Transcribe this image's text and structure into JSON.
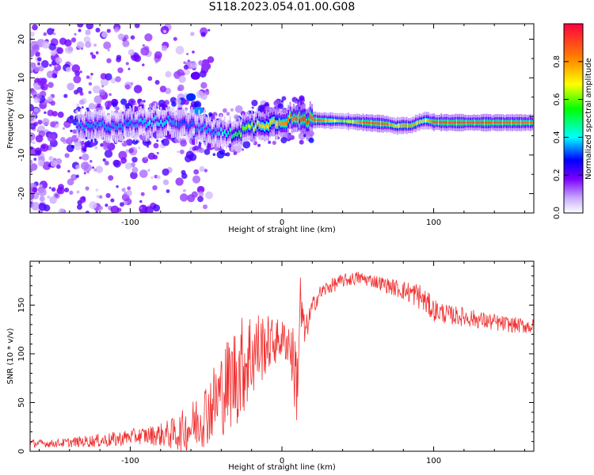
{
  "figure_title": "S118.2023.054.01.00.G08",
  "chart_data": [
    {
      "type": "heatmap",
      "title": "",
      "xlabel": "Height of straight line (km)",
      "ylabel": "Frequency (Hz)",
      "xlim": [
        -166,
        166
      ],
      "ylim": [
        -25,
        24
      ],
      "xticks": [
        -100,
        0,
        100
      ],
      "yticks": [
        -20,
        -10,
        0,
        10,
        20
      ],
      "colorbar": {
        "label": "Normalized spectral amplitude",
        "range": [
          0.0,
          1.0
        ],
        "ticks": [
          0.0,
          0.2,
          0.4,
          0.6,
          0.8
        ],
        "tick_labels": [
          "0.0",
          "0.2",
          "0.4",
          "0.6",
          "0.8"
        ],
        "colormap": [
          "#ffffff",
          "#c8a8ff",
          "#7a00ff",
          "#0000ff",
          "#00ffff",
          "#00ff00",
          "#ffff00",
          "#ff8000",
          "#ff0040"
        ]
      },
      "ridge": {
        "x": [
          -135,
          -120,
          -100,
          -80,
          -65,
          -55,
          -45,
          -35,
          -25,
          -15,
          -5,
          5,
          15,
          25,
          40,
          55,
          70,
          75,
          80,
          85,
          90,
          95,
          100,
          110,
          130,
          166
        ],
        "frequency": [
          -3,
          -2.5,
          -2,
          -1,
          -1.5,
          -3,
          -4,
          -4.5,
          -3.5,
          -2,
          -1.5,
          -0.5,
          -0.8,
          -1,
          -1.2,
          -1.6,
          -2,
          -2.5,
          -2.3,
          -2.4,
          -1.5,
          -1,
          -1.5,
          -1.6,
          -1.6,
          -1.6
        ],
        "amplitude": [
          0.35,
          0.35,
          0.35,
          0.4,
          0.3,
          0.35,
          0.35,
          0.45,
          0.6,
          0.7,
          0.75,
          0.85,
          0.9,
          0.85,
          0.6,
          0.9,
          0.85,
          0.7,
          0.8,
          0.8,
          0.75,
          0.7,
          0.9,
          0.9,
          0.9,
          0.85
        ]
      },
      "noise_features": [
        {
          "x": -57,
          "frequency": 10.5,
          "amplitude": 0.2
        },
        {
          "x": -50,
          "frequency": 13,
          "amplitude": 0.15
        },
        {
          "x": -60,
          "frequency": 5,
          "amplitude": 0.3
        },
        {
          "x": -55,
          "frequency": 1.5,
          "amplitude": 0.35
        }
      ]
    },
    {
      "type": "line",
      "title": "",
      "xlabel": "Height of straight line (km)",
      "ylabel": "SNR (10 * v/v)",
      "xlim": [
        -166,
        166
      ],
      "ylim": [
        0,
        195
      ],
      "xticks": [
        -100,
        0,
        100
      ],
      "yticks": [
        0,
        50,
        100,
        150
      ],
      "color": "#f03030",
      "series": [
        {
          "x": [
            -166,
            -150,
            -130,
            -110,
            -100,
            -90,
            -80,
            -70,
            -60,
            -50,
            -40,
            -30,
            -20,
            -10,
            0,
            5,
            10,
            12,
            15,
            20,
            25,
            30,
            40,
            50,
            60,
            70,
            80,
            90,
            100,
            110,
            120,
            130,
            140,
            150,
            166
          ],
          "values": [
            8,
            8,
            10,
            12,
            15,
            16,
            17,
            18,
            25,
            40,
            60,
            80,
            100,
            110,
            115,
            112,
            70,
            150,
            120,
            148,
            162,
            168,
            175,
            178,
            175,
            170,
            165,
            160,
            145,
            140,
            138,
            135,
            132,
            130,
            128
          ],
          "noise_amplitude": [
            4,
            4,
            6,
            8,
            8,
            9,
            12,
            18,
            25,
            35,
            45,
            55,
            50,
            30,
            20,
            25,
            50,
            40,
            15,
            10,
            8,
            8,
            7,
            7,
            7,
            8,
            10,
            14,
            12,
            10,
            10,
            9,
            9,
            8,
            8
          ]
        }
      ]
    }
  ]
}
